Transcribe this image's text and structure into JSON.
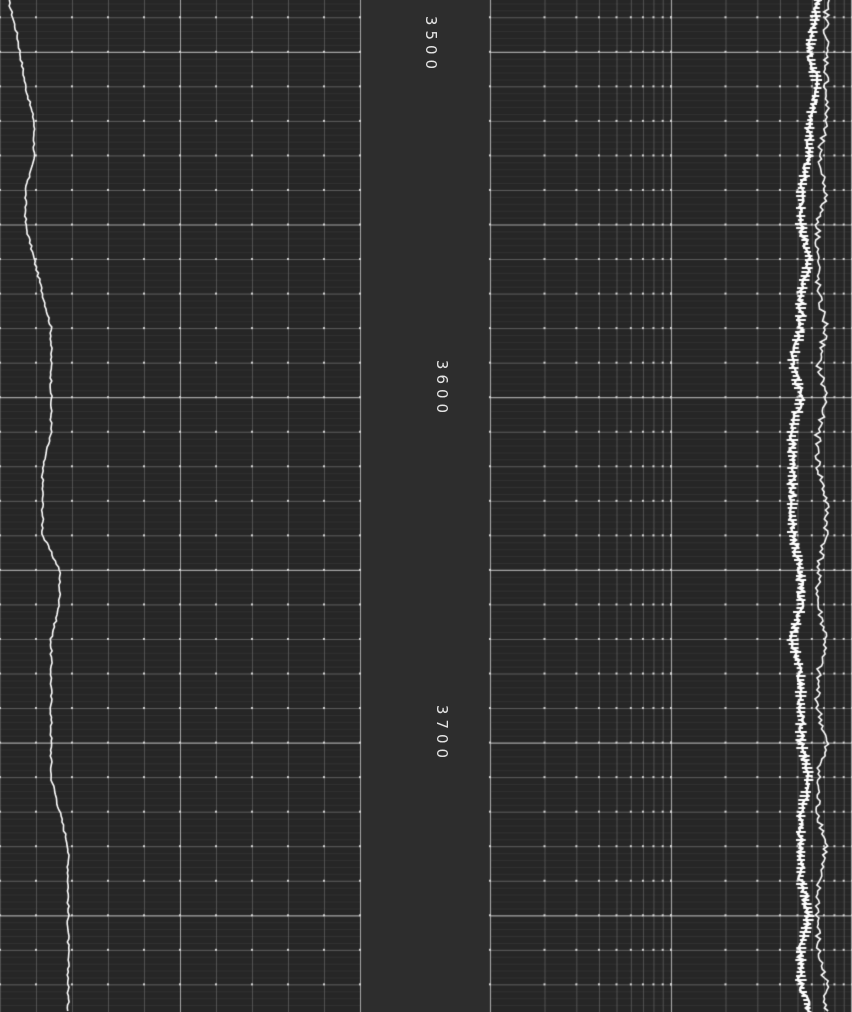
{
  "depth_labels": {
    "d3500": "3500",
    "d3600": "3600",
    "d3700": "3700"
  },
  "colors": {
    "background": "#262626",
    "depth_track": "#2d2d2d",
    "grid": "#6e6e6e",
    "grid_major": "#a8a8a8",
    "curve": "#ffffff"
  },
  "chart_data": {
    "type": "line",
    "depth_range": [
      3485,
      3778
    ],
    "depth_ticks": [
      3500,
      3600,
      3700
    ],
    "series": [
      {
        "depth": [
          3485,
          3495,
          3510,
          3520,
          3530,
          3540,
          3550,
          3560,
          3570,
          3580,
          3590,
          3600,
          3610,
          3620,
          3630,
          3640,
          3645,
          3650,
          3660,
          3670,
          3680,
          3690,
          3700,
          3710,
          3720,
          3730,
          3740,
          3750,
          3760,
          3770,
          3778
        ],
        "values": [
          0.01,
          0.02,
          0.03,
          0.04,
          0.04,
          0.03,
          0.03,
          0.04,
          0.05,
          0.06,
          0.06,
          0.06,
          0.06,
          0.05,
          0.05,
          0.05,
          0.06,
          0.07,
          0.07,
          0.06,
          0.06,
          0.06,
          0.06,
          0.06,
          0.07,
          0.08,
          0.08,
          0.08,
          0.08,
          0.08,
          0.08
        ]
      },
      {
        "depth": [
          3485,
          3500,
          3510,
          3520,
          3530,
          3540,
          3550,
          3560,
          3570,
          3580,
          3590,
          3600,
          3610,
          3620,
          3630,
          3640,
          3650,
          3660,
          3670,
          3680,
          3690,
          3700,
          3710,
          3720,
          3730,
          3740,
          3750,
          3760,
          3770,
          3778
        ],
        "values": [
          0.96,
          0.95,
          0.96,
          0.95,
          0.95,
          0.94,
          0.94,
          0.95,
          0.94,
          0.94,
          0.93,
          0.94,
          0.93,
          0.93,
          0.93,
          0.93,
          0.94,
          0.94,
          0.93,
          0.94,
          0.94,
          0.94,
          0.95,
          0.94,
          0.94,
          0.94,
          0.95,
          0.94,
          0.94,
          0.95
        ]
      },
      {
        "depth": [
          3485,
          3500,
          3510,
          3520,
          3530,
          3540,
          3550,
          3560,
          3570,
          3580,
          3590,
          3600,
          3610,
          3620,
          3630,
          3640,
          3650,
          3660,
          3670,
          3680,
          3690,
          3700,
          3710,
          3720,
          3730,
          3740,
          3750,
          3760,
          3770,
          3778
        ],
        "values": [
          0.97,
          0.97,
          0.97,
          0.97,
          0.96,
          0.97,
          0.96,
          0.96,
          0.96,
          0.97,
          0.96,
          0.97,
          0.96,
          0.96,
          0.97,
          0.97,
          0.96,
          0.96,
          0.97,
          0.96,
          0.96,
          0.97,
          0.96,
          0.96,
          0.97,
          0.96,
          0.96,
          0.96,
          0.97,
          0.97
        ]
      }
    ]
  }
}
